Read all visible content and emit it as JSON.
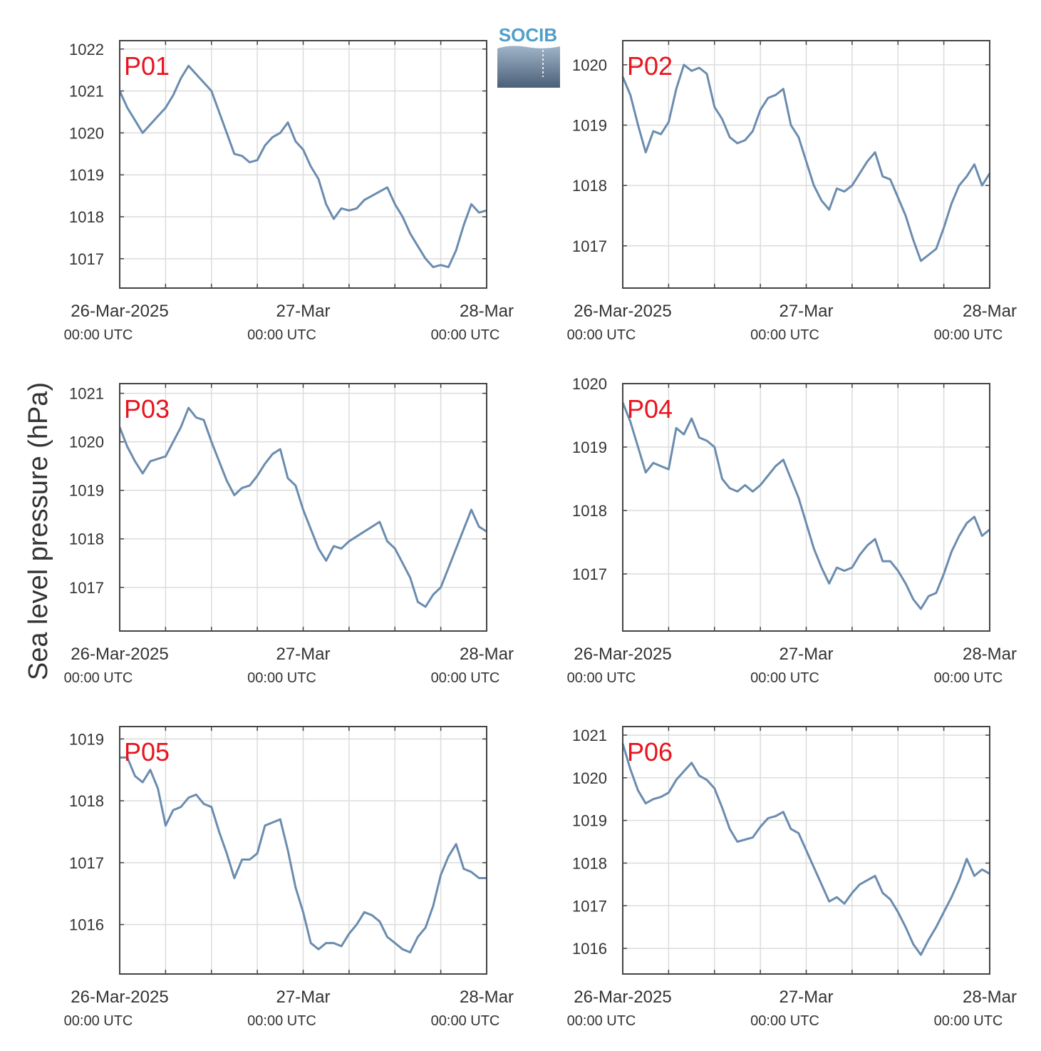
{
  "figure": {
    "ylabel": "Sea level pressure (hPa)",
    "logo_text": "SOCIB",
    "line_color": "#6a8caf",
    "label_color": "#e8141e"
  },
  "chart_data": [
    {
      "type": "line",
      "label": "P01",
      "ylabel": "Sea level pressure (hPa)",
      "x_ticks": [
        "26-Mar-2025",
        "27-Mar",
        "28-Mar"
      ],
      "x_tick_sub": [
        "00:00 UTC",
        "00:00 UTC",
        "00:00 UTC"
      ],
      "xlim_hours": [
        0,
        48
      ],
      "yticks": [
        1017,
        1018,
        1019,
        1020,
        1021,
        1022
      ],
      "ylim": [
        1016.3,
        1022.2
      ],
      "grid": true,
      "series": [
        {
          "x": [
            0,
            1,
            2,
            3,
            4,
            5,
            6,
            7,
            8,
            9,
            10,
            11,
            12,
            13,
            14,
            15,
            16,
            17,
            18,
            19,
            20,
            21,
            22,
            23,
            24,
            25,
            26,
            27,
            28,
            29,
            30,
            31,
            32,
            33,
            34,
            35,
            36,
            37,
            38,
            39,
            40,
            41,
            42,
            43,
            44,
            45,
            46,
            47,
            48
          ],
          "values": [
            1021.0,
            1020.6,
            1020.3,
            1020.0,
            1020.2,
            1020.4,
            1020.6,
            1020.9,
            1021.3,
            1021.6,
            1021.4,
            1021.2,
            1021.0,
            1020.5,
            1020.0,
            1019.5,
            1019.45,
            1019.3,
            1019.35,
            1019.7,
            1019.9,
            1020.0,
            1020.25,
            1019.8,
            1019.6,
            1019.2,
            1018.9,
            1018.3,
            1017.95,
            1018.2,
            1018.15,
            1018.2,
            1018.4,
            1018.5,
            1018.6,
            1018.7,
            1018.3,
            1018.0,
            1017.6,
            1017.3,
            1017.0,
            1016.8,
            1016.85,
            1016.8,
            1017.2,
            1017.8,
            1018.3,
            1018.1,
            1018.15
          ]
        }
      ]
    },
    {
      "type": "line",
      "label": "P02",
      "ylabel": "Sea level pressure (hPa)",
      "x_ticks": [
        "26-Mar-2025",
        "27-Mar",
        "28-Mar"
      ],
      "x_tick_sub": [
        "00:00 UTC",
        "00:00 UTC",
        "00:00 UTC"
      ],
      "xlim_hours": [
        0,
        48
      ],
      "yticks": [
        1017,
        1018,
        1019,
        1020
      ],
      "ylim": [
        1016.3,
        1020.4
      ],
      "grid": true,
      "series": [
        {
          "x": [
            0,
            1,
            2,
            3,
            4,
            5,
            6,
            7,
            8,
            9,
            10,
            11,
            12,
            13,
            14,
            15,
            16,
            17,
            18,
            19,
            20,
            21,
            22,
            23,
            24,
            25,
            26,
            27,
            28,
            29,
            30,
            31,
            32,
            33,
            34,
            35,
            36,
            37,
            38,
            39,
            40,
            41,
            42,
            43,
            44,
            45,
            46,
            47,
            48
          ],
          "values": [
            1019.8,
            1019.5,
            1019.0,
            1018.55,
            1018.9,
            1018.85,
            1019.05,
            1019.6,
            1020.0,
            1019.9,
            1019.95,
            1019.85,
            1019.3,
            1019.1,
            1018.8,
            1018.7,
            1018.75,
            1018.9,
            1019.25,
            1019.45,
            1019.5,
            1019.6,
            1019.0,
            1018.8,
            1018.4,
            1018.0,
            1017.75,
            1017.6,
            1017.95,
            1017.9,
            1018.0,
            1018.2,
            1018.4,
            1018.55,
            1018.15,
            1018.1,
            1017.8,
            1017.5,
            1017.1,
            1016.75,
            1016.85,
            1016.95,
            1017.3,
            1017.7,
            1018.0,
            1018.15,
            1018.35,
            1018.0,
            1018.2
          ]
        }
      ]
    },
    {
      "type": "line",
      "label": "P03",
      "ylabel": "Sea level pressure (hPa)",
      "x_ticks": [
        "26-Mar-2025",
        "27-Mar",
        "28-Mar"
      ],
      "x_tick_sub": [
        "00:00 UTC",
        "00:00 UTC",
        "00:00 UTC"
      ],
      "xlim_hours": [
        0,
        48
      ],
      "yticks": [
        1017,
        1018,
        1019,
        1020,
        1021
      ],
      "ylim": [
        1016.1,
        1021.2
      ],
      "grid": true,
      "series": [
        {
          "x": [
            0,
            1,
            2,
            3,
            4,
            5,
            6,
            7,
            8,
            9,
            10,
            11,
            12,
            13,
            14,
            15,
            16,
            17,
            18,
            19,
            20,
            21,
            22,
            23,
            24,
            25,
            26,
            27,
            28,
            29,
            30,
            31,
            32,
            33,
            34,
            35,
            36,
            37,
            38,
            39,
            40,
            41,
            42,
            43,
            44,
            45,
            46,
            47,
            48
          ],
          "values": [
            1020.3,
            1019.9,
            1019.6,
            1019.35,
            1019.6,
            1019.65,
            1019.7,
            1020.0,
            1020.3,
            1020.7,
            1020.5,
            1020.45,
            1020.0,
            1019.6,
            1019.2,
            1018.9,
            1019.05,
            1019.1,
            1019.3,
            1019.55,
            1019.75,
            1019.85,
            1019.25,
            1019.1,
            1018.6,
            1018.2,
            1017.8,
            1017.55,
            1017.85,
            1017.8,
            1017.95,
            1018.05,
            1018.15,
            1018.25,
            1018.35,
            1017.95,
            1017.8,
            1017.5,
            1017.2,
            1016.7,
            1016.6,
            1016.85,
            1017.0,
            1017.4,
            1017.8,
            1018.2,
            1018.6,
            1018.25,
            1018.15
          ]
        }
      ]
    },
    {
      "type": "line",
      "label": "P04",
      "ylabel": "Sea level pressure (hPa)",
      "x_ticks": [
        "26-Mar-2025",
        "27-Mar",
        "28-Mar"
      ],
      "x_tick_sub": [
        "00:00 UTC",
        "00:00 UTC",
        "00:00 UTC"
      ],
      "xlim_hours": [
        0,
        48
      ],
      "yticks": [
        1017,
        1018,
        1019,
        1020
      ],
      "ylim": [
        1016.1,
        1020.0
      ],
      "grid": true,
      "series": [
        {
          "x": [
            0,
            1,
            2,
            3,
            4,
            5,
            6,
            7,
            8,
            9,
            10,
            11,
            12,
            13,
            14,
            15,
            16,
            17,
            18,
            19,
            20,
            21,
            22,
            23,
            24,
            25,
            26,
            27,
            28,
            29,
            30,
            31,
            32,
            33,
            34,
            35,
            36,
            37,
            38,
            39,
            40,
            41,
            42,
            43,
            44,
            45,
            46,
            47,
            48
          ],
          "values": [
            1019.7,
            1019.4,
            1019.0,
            1018.6,
            1018.75,
            1018.7,
            1018.65,
            1019.3,
            1019.2,
            1019.45,
            1019.15,
            1019.1,
            1019.0,
            1018.5,
            1018.35,
            1018.3,
            1018.4,
            1018.3,
            1018.4,
            1018.55,
            1018.7,
            1018.8,
            1018.5,
            1018.2,
            1017.8,
            1017.4,
            1017.1,
            1016.85,
            1017.1,
            1017.05,
            1017.1,
            1017.3,
            1017.45,
            1017.55,
            1017.2,
            1017.2,
            1017.05,
            1016.85,
            1016.6,
            1016.45,
            1016.65,
            1016.7,
            1017.0,
            1017.35,
            1017.6,
            1017.8,
            1017.9,
            1017.6,
            1017.7
          ]
        }
      ]
    },
    {
      "type": "line",
      "label": "P05",
      "ylabel": "Sea level pressure (hPa)",
      "x_ticks": [
        "26-Mar-2025",
        "27-Mar",
        "28-Mar"
      ],
      "x_tick_sub": [
        "00:00 UTC",
        "00:00 UTC",
        "00:00 UTC"
      ],
      "xlim_hours": [
        0,
        48
      ],
      "yticks": [
        1016,
        1017,
        1018,
        1019
      ],
      "ylim": [
        1015.2,
        1019.2
      ],
      "grid": true,
      "series": [
        {
          "x": [
            0,
            1,
            2,
            3,
            4,
            5,
            6,
            7,
            8,
            9,
            10,
            11,
            12,
            13,
            14,
            15,
            16,
            17,
            18,
            19,
            20,
            21,
            22,
            23,
            24,
            25,
            26,
            27,
            28,
            29,
            30,
            31,
            32,
            33,
            34,
            35,
            36,
            37,
            38,
            39,
            40,
            41,
            42,
            43,
            44,
            45,
            46,
            47,
            48
          ],
          "values": [
            1018.7,
            1018.7,
            1018.4,
            1018.3,
            1018.5,
            1018.2,
            1017.6,
            1017.85,
            1017.9,
            1018.05,
            1018.1,
            1017.95,
            1017.9,
            1017.5,
            1017.15,
            1016.75,
            1017.05,
            1017.05,
            1017.15,
            1017.6,
            1017.65,
            1017.7,
            1017.2,
            1016.6,
            1016.2,
            1015.7,
            1015.6,
            1015.7,
            1015.7,
            1015.65,
            1015.85,
            1016.0,
            1016.2,
            1016.15,
            1016.05,
            1015.8,
            1015.7,
            1015.6,
            1015.55,
            1015.8,
            1015.95,
            1016.3,
            1016.8,
            1017.1,
            1017.3,
            1016.9,
            1016.85,
            1016.75,
            1016.75
          ]
        }
      ]
    },
    {
      "type": "line",
      "label": "P06",
      "ylabel": "Sea level pressure (hPa)",
      "x_ticks": [
        "26-Mar-2025",
        "27-Mar",
        "28-Mar"
      ],
      "x_tick_sub": [
        "00:00 UTC",
        "00:00 UTC",
        "00:00 UTC"
      ],
      "xlim_hours": [
        0,
        48
      ],
      "yticks": [
        1016,
        1017,
        1018,
        1019,
        1020,
        1021
      ],
      "ylim": [
        1015.4,
        1021.2
      ],
      "grid": true,
      "series": [
        {
          "x": [
            0,
            1,
            2,
            3,
            4,
            5,
            6,
            7,
            8,
            9,
            10,
            11,
            12,
            13,
            14,
            15,
            16,
            17,
            18,
            19,
            20,
            21,
            22,
            23,
            24,
            25,
            26,
            27,
            28,
            29,
            30,
            31,
            32,
            33,
            34,
            35,
            36,
            37,
            38,
            39,
            40,
            41,
            42,
            43,
            44,
            45,
            46,
            47,
            48
          ],
          "values": [
            1020.8,
            1020.2,
            1019.7,
            1019.4,
            1019.5,
            1019.55,
            1019.65,
            1019.95,
            1020.15,
            1020.35,
            1020.05,
            1019.95,
            1019.75,
            1019.3,
            1018.8,
            1018.5,
            1018.55,
            1018.6,
            1018.85,
            1019.05,
            1019.1,
            1019.2,
            1018.8,
            1018.7,
            1018.3,
            1017.9,
            1017.5,
            1017.1,
            1017.2,
            1017.05,
            1017.3,
            1017.5,
            1017.6,
            1017.7,
            1017.3,
            1017.15,
            1016.85,
            1016.5,
            1016.1,
            1015.85,
            1016.2,
            1016.5,
            1016.85,
            1017.2,
            1017.6,
            1018.1,
            1017.7,
            1017.85,
            1017.75
          ]
        }
      ]
    }
  ]
}
